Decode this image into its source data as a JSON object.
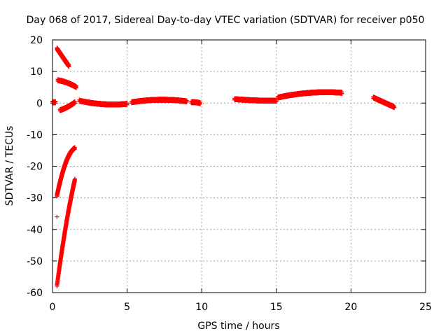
{
  "chart_data": {
    "type": "scatter",
    "title": "Day 068 of 2017, Sidereal Day-to-day VTEC variation (SDTVAR) for receiver p050",
    "xlabel": "GPS time / hours",
    "ylabel": "SDTVAR / TECUs",
    "xlim": [
      0,
      25
    ],
    "ylim": [
      -60,
      20
    ],
    "xticks": [
      0,
      5,
      10,
      15,
      20,
      25
    ],
    "yticks": [
      -60,
      -50,
      -40,
      -30,
      -20,
      -10,
      0,
      10,
      20
    ],
    "grid": true,
    "marker": "+",
    "color": "#ff0000",
    "segments": [
      {
        "from": [
          0.0,
          0.0
        ],
        "to": [
          0.2,
          0.0
        ],
        "mid": 0.0
      },
      {
        "from": [
          0.3,
          17.0
        ],
        "to": [
          1.1,
          11.5
        ],
        "mid": 14.2
      },
      {
        "from": [
          0.35,
          7.0
        ],
        "to": [
          1.6,
          4.8
        ],
        "mid": 6.2
      },
      {
        "from": [
          0.5,
          -2.5
        ],
        "to": [
          1.5,
          0.0
        ],
        "mid": -1.5
      },
      {
        "from": [
          0.3,
          -29.5
        ],
        "to": [
          1.5,
          -14.5
        ],
        "mid": -19.0
      },
      {
        "from": [
          0.3,
          -58.0
        ],
        "to": [
          1.5,
          -24.5
        ],
        "mid": -39.0
      },
      {
        "from": [
          1.8,
          0.5
        ],
        "to": [
          5.0,
          -0.5
        ],
        "mid": -0.6
      },
      {
        "from": [
          5.3,
          0.0
        ],
        "to": [
          9.0,
          0.3
        ],
        "mid": 0.8
      },
      {
        "from": [
          9.3,
          0.0
        ],
        "to": [
          9.9,
          -0.3
        ],
        "mid": 0.0
      },
      {
        "from": [
          12.2,
          1.0
        ],
        "to": [
          15.0,
          0.5
        ],
        "mid": 0.6
      },
      {
        "from": [
          15.1,
          1.5
        ],
        "to": [
          19.4,
          3.0
        ],
        "mid": 3.0
      },
      {
        "from": [
          21.5,
          1.5
        ],
        "to": [
          22.9,
          -1.5
        ],
        "mid": 0.0
      }
    ],
    "outliers": [
      [
        0.3,
        -36.0
      ]
    ]
  }
}
